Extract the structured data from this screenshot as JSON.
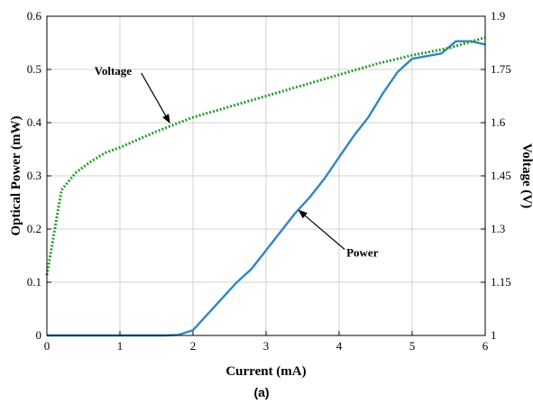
{
  "chart_data": {
    "type": "line",
    "xlabel": "Current (mA)",
    "ylabel": "Optical Power (mW)",
    "y2label": "Voltage (V)",
    "caption": "(a)",
    "xlim": [
      0,
      6
    ],
    "ylim": [
      0,
      0.6
    ],
    "y2lim": [
      1,
      1.9
    ],
    "x_ticks": [
      "0",
      "1",
      "2",
      "3",
      "4",
      "5",
      "6"
    ],
    "y_ticks": [
      "0",
      "0.1",
      "0.2",
      "0.3",
      "0.4",
      "0.5",
      "0.6"
    ],
    "y2_ticks": [
      "1",
      "1.15",
      "1.3",
      "1.45",
      "1.6",
      "1.75",
      "1.9"
    ],
    "grid": true,
    "series": [
      {
        "name": "Power",
        "axis": "left",
        "color": "#2e86c8",
        "style": "solid",
        "x": [
          0,
          1.0,
          1.6,
          1.8,
          2.0,
          2.2,
          2.4,
          2.6,
          2.8,
          3.0,
          3.2,
          3.4,
          3.6,
          3.8,
          4.0,
          4.2,
          4.4,
          4.6,
          4.8,
          5.0,
          5.2,
          5.4,
          5.6,
          5.8,
          6.0
        ],
        "y": [
          0,
          0,
          0,
          0.001,
          0.01,
          0.04,
          0.07,
          0.1,
          0.125,
          0.16,
          0.195,
          0.23,
          0.26,
          0.295,
          0.335,
          0.375,
          0.41,
          0.455,
          0.495,
          0.52,
          0.525,
          0.53,
          0.553,
          0.553,
          0.547
        ]
      },
      {
        "name": "Voltage",
        "axis": "right",
        "color": "#2a9a2a",
        "style": "dotted",
        "x": [
          0,
          0.2,
          0.4,
          0.6,
          0.8,
          1.0,
          1.5,
          2.0,
          2.5,
          3.0,
          3.5,
          4.0,
          4.5,
          5.0,
          5.5,
          6.0
        ],
        "y": [
          1.17,
          1.41,
          1.46,
          1.49,
          1.515,
          1.53,
          1.575,
          1.615,
          1.645,
          1.675,
          1.705,
          1.735,
          1.765,
          1.79,
          1.81,
          1.84
        ]
      }
    ],
    "annotations": [
      {
        "text": "Voltage",
        "label_at": [
          0.65,
          1.745
        ],
        "arrow_to": [
          1.68,
          1.6
        ]
      },
      {
        "text": "Power",
        "label_at": [
          4.1,
          0.155
        ],
        "arrow_to": [
          3.45,
          0.235
        ]
      }
    ]
  }
}
